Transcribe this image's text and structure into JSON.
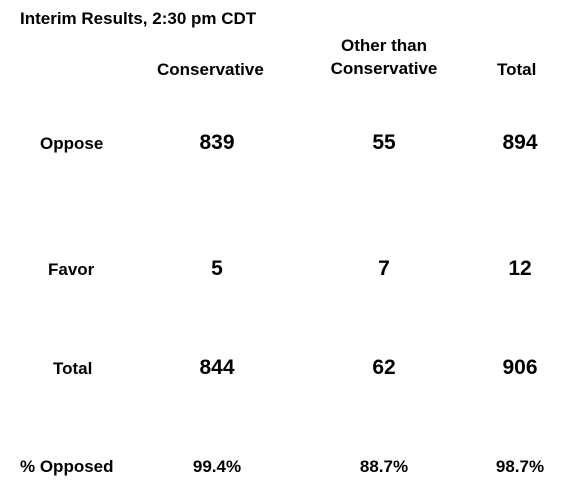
{
  "table": {
    "title": "Interim Results, 2:30 pm CDT",
    "columns": {
      "conservative": "Conservative",
      "other_line1": "Other than",
      "other_line2": "Conservative",
      "total": "Total"
    },
    "rows": [
      {
        "label": "Oppose",
        "conservative": "839",
        "other": "55",
        "total": "894"
      },
      {
        "label": "Favor",
        "conservative": "5",
        "other": "7",
        "total": "12"
      },
      {
        "label": "Total",
        "conservative": "844",
        "other": "62",
        "total": "906"
      },
      {
        "label": "% Opposed",
        "conservative": "99.4%",
        "other": "88.7%",
        "total": "98.7%"
      }
    ]
  }
}
